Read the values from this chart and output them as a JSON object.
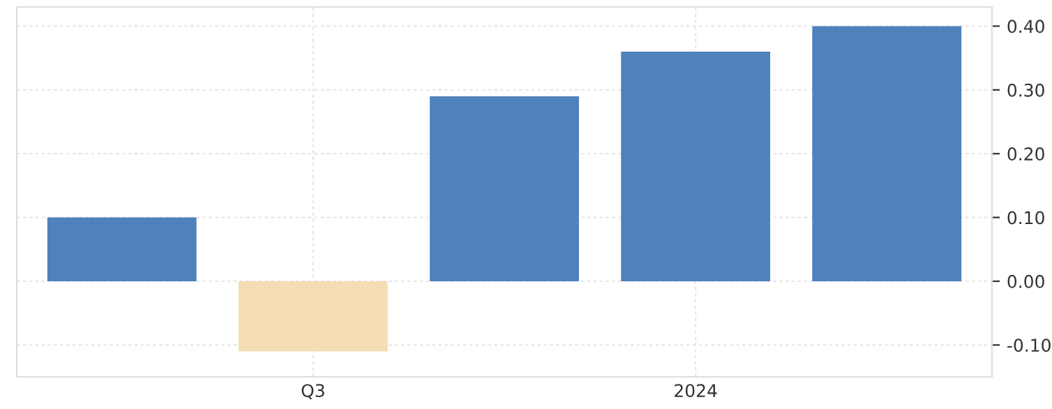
{
  "chart_data": {
    "type": "bar",
    "categories": [
      null,
      "Q3",
      null,
      "2024",
      null
    ],
    "values": [
      0.1,
      -0.11,
      0.29,
      0.36,
      0.4
    ],
    "colors": [
      "#4f81bd",
      "#f5ddb3",
      "#4f81bd",
      "#4f81bd",
      "#4f81bd"
    ],
    "ylim": [
      -0.15,
      0.43
    ],
    "yticks": [
      {
        "value": -0.1,
        "label": "-0.10"
      },
      {
        "value": 0,
        "label": "0.00"
      },
      {
        "value": 0.1,
        "label": "0.10"
      },
      {
        "value": 0.2,
        "label": "0.20"
      },
      {
        "value": 0.3,
        "label": "0.30"
      },
      {
        "value": 0.4,
        "label": "0.40"
      }
    ],
    "grid": true
  }
}
